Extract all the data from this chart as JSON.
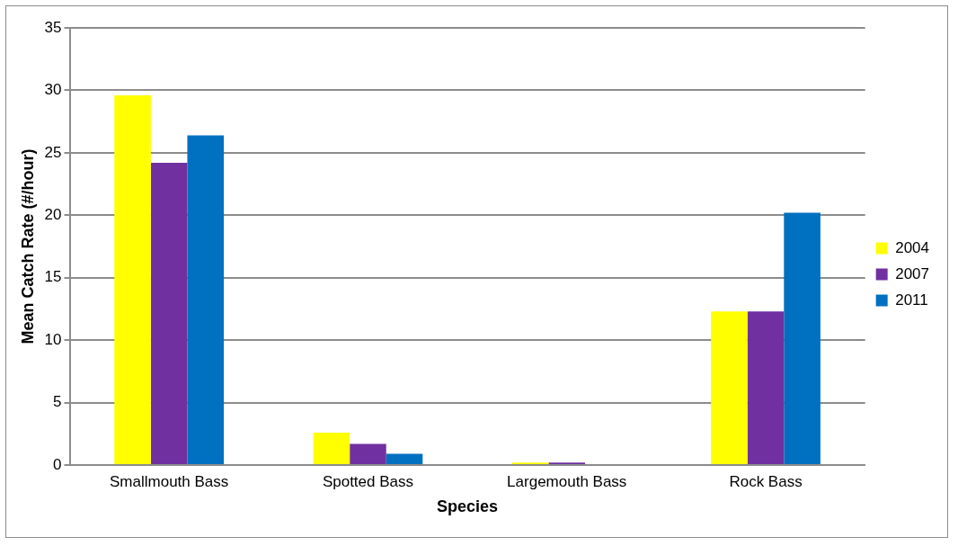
{
  "chart_data": {
    "type": "bar",
    "xlabel": "Species",
    "ylabel": "Mean Catch Rate (#/hour)",
    "categories": [
      "Smallmouth Bass",
      "Spotted Bass",
      "Largemouth Bass",
      "Rock Bass"
    ],
    "series": [
      {
        "name": "2004",
        "color": "#ffff00",
        "values": [
          29.6,
          2.6,
          0.2,
          12.3
        ]
      },
      {
        "name": "2007",
        "color": "#7030a0",
        "values": [
          24.2,
          1.7,
          0.2,
          12.3
        ]
      },
      {
        "name": "2011",
        "color": "#0070c0",
        "values": [
          26.4,
          0.9,
          0,
          20.2
        ]
      }
    ],
    "ylim": [
      0,
      35
    ],
    "yticks": [
      0,
      5,
      10,
      15,
      20,
      25,
      30,
      35
    ],
    "grid": "y",
    "legend": "right"
  }
}
